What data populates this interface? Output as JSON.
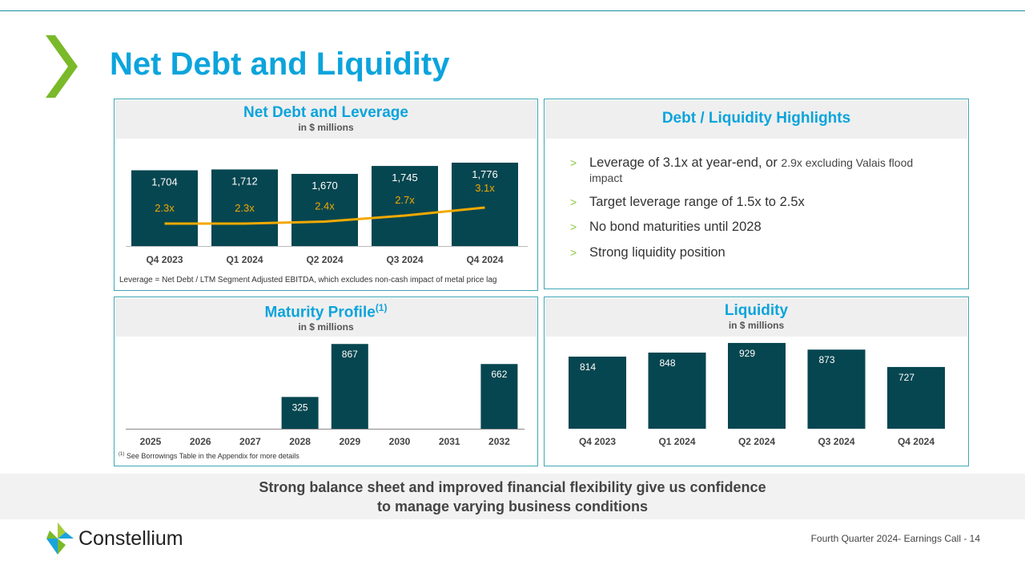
{
  "slide": {
    "title": "Net Debt and Liquidity",
    "banner_line1": "Strong balance sheet and improved financial flexibility give us confidence",
    "banner_line2": "to manage varying business conditions",
    "footer": "Fourth Quarter 2024-  Earnings Call - 14",
    "logo_text": "Constellium",
    "colors": {
      "title": "#0ba4dc",
      "bar": "#064650",
      "leverage_line": "#f2a900",
      "chevron": "#7ab929"
    }
  },
  "highlights": {
    "title": "Debt / Liquidity Highlights",
    "items": [
      {
        "main": "Leverage of 3.1x at year-end, or ",
        "small": "2.9x excluding Valais flood impact"
      },
      {
        "main": "Target leverage range of 1.5x to 2.5x"
      },
      {
        "main": "No bond maturities until 2028"
      },
      {
        "main": "Strong liquidity position"
      }
    ],
    "bullet": ">"
  },
  "chart_data": [
    {
      "type": "bar",
      "title": "Net Debt and Leverage",
      "subtitle": "in $ millions",
      "categories": [
        "Q4 2023",
        "Q1 2024",
        "Q2 2024",
        "Q3 2024",
        "Q4 2024"
      ],
      "series": [
        {
          "name": "Net Debt",
          "type": "bar",
          "values": [
            1704,
            1712,
            1670,
            1745,
            1776
          ],
          "labels": [
            "1,704",
            "1,712",
            "1,670",
            "1,745",
            "1,776"
          ]
        },
        {
          "name": "Leverage",
          "type": "line",
          "values": [
            2.3,
            2.3,
            2.4,
            2.7,
            3.1
          ],
          "labels": [
            "2.3x",
            "2.3x",
            "2.4x",
            "2.7x",
            "3.1x"
          ]
        }
      ],
      "note": "Leverage = Net Debt / LTM Segment Adjusted EBITDA, which excludes non-cash impact of metal price lag"
    },
    {
      "type": "bar",
      "title": "Maturity Profile",
      "title_sup": "(1)",
      "subtitle": "in $ millions",
      "categories": [
        "2025",
        "2026",
        "2027",
        "2028",
        "2029",
        "2030",
        "2031",
        "2032"
      ],
      "values": [
        0,
        0,
        0,
        325,
        867,
        0,
        0,
        662
      ],
      "labels": [
        "",
        "",
        "",
        "325",
        "867",
        "",
        "",
        "662"
      ],
      "note_sup": "(1)",
      "note": " See Borrowings Table in the Appendix for more details"
    },
    {
      "type": "bar",
      "title": "Liquidity",
      "subtitle": "in $ millions",
      "categories": [
        "Q4 2023",
        "Q1 2024",
        "Q2 2024",
        "Q3 2024",
        "Q4 2024"
      ],
      "values": [
        814,
        848,
        929,
        873,
        727
      ],
      "labels": [
        "814",
        "848",
        "929",
        "873",
        "727"
      ]
    }
  ]
}
